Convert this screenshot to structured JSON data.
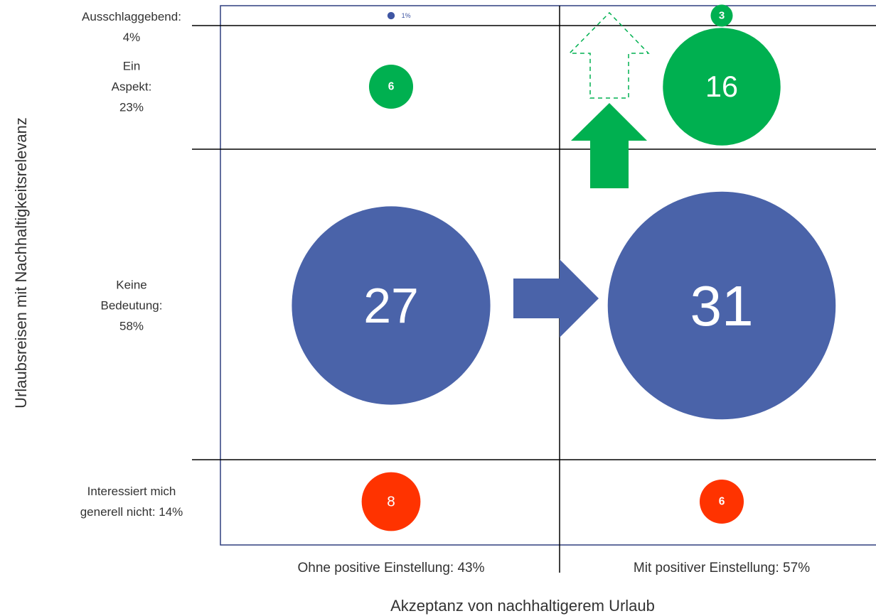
{
  "chart_data": {
    "type": "bubble",
    "x_label": "Akzeptanz von nachhaltigerem Urlaub",
    "y_label": "Urlaubsreisen mit Nachhaltigkeitsrelevanz",
    "categories": [
      "Ohne positive Einstellung: 43%",
      "Mit positiver Einstellung: 57%"
    ],
    "series": [
      {
        "name": "Ausschlaggebend:\n4%",
        "colors": [
          "#3f56a3",
          "#00b050"
        ],
        "values": [
          1,
          3
        ],
        "value_labels": [
          "1%",
          "3"
        ]
      },
      {
        "name": "Ein\nAspekt:\n23%",
        "colors": [
          "#00b050",
          "#00b050"
        ],
        "values": [
          6,
          16
        ]
      },
      {
        "name": "Keine\nBedeutung:\n58%",
        "colors": [
          "#4a63a9",
          "#4a63a9"
        ],
        "values": [
          27,
          31
        ]
      },
      {
        "name": "Interessiert mich\ngenerell nicht: 14%",
        "colors": [
          "#ff3300",
          "#ff3300"
        ],
        "values": [
          8,
          6
        ]
      }
    ]
  }
}
